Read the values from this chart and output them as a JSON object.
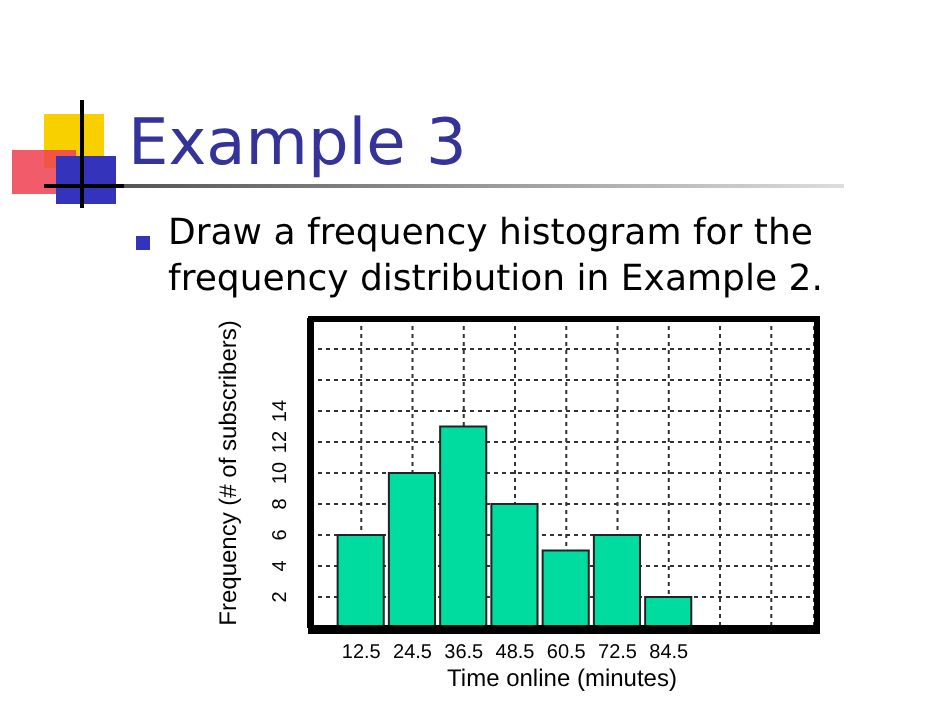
{
  "chart_data": {
    "type": "histogram",
    "title": "Example 3",
    "subtitle": "Draw a frequency histogram for the frequency distribution in Example 2.",
    "xlabel": "Time online (minutes)",
    "ylabel": "Frequency (# of subscribers)",
    "bins": [
      6.5,
      18.5,
      30.5,
      42.5,
      54.5,
      66.5,
      78.5,
      90.5
    ],
    "values": [
      6,
      10,
      13,
      8,
      5,
      6,
      2
    ],
    "color": "#00dca0",
    "xlim": [
      0.5,
      118.5
    ],
    "xticks": [
      12.5,
      24.5,
      36.5,
      48.5,
      60.5,
      72.5,
      84.5,
      {
        "value": 96.5,
        "label": null
      },
      {
        "value": 108.5,
        "label": null
      }
    ],
    "ylim": [
      0,
      20
    ],
    "yticks": [
      2,
      4,
      6,
      8,
      10,
      12,
      14,
      {
        "value": 16,
        "label": null
      },
      {
        "value": 18,
        "label": null
      }
    ],
    "grid": true
  }
}
